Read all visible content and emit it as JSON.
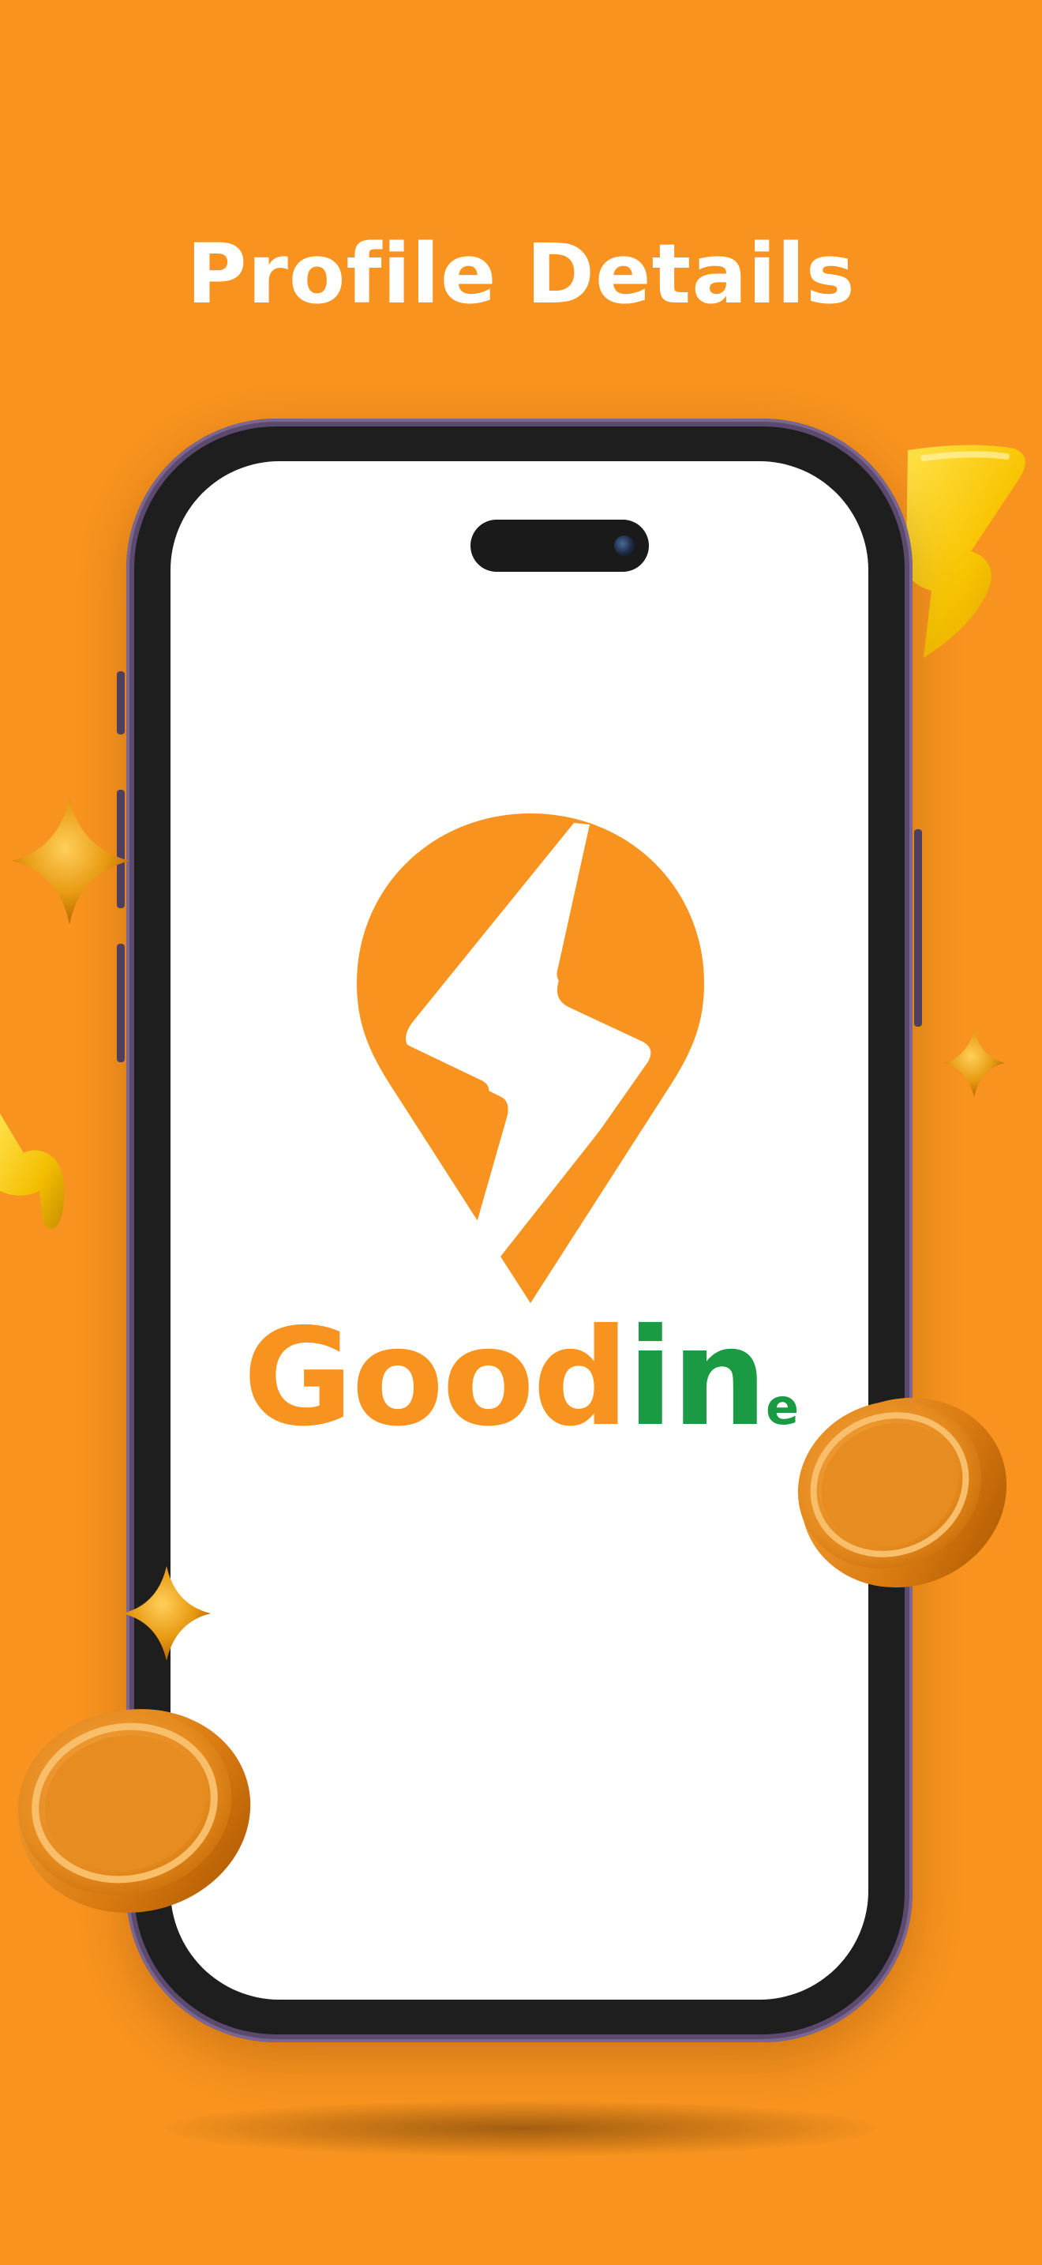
{
  "page": {
    "headline": "Profile Details",
    "background_color": "#F7931E"
  },
  "logo": {
    "icon": "lightning-location-pin-icon",
    "brand_part_1": "Good",
    "brand_part_2": "in",
    "brand_part_3": "e",
    "orange_color": "#F7931E",
    "green_color": "#1A9A43"
  },
  "decorations": [
    "gold-lightning-bolt-icon",
    "gold-sparkle-star-icon",
    "gold-coin-icon"
  ]
}
